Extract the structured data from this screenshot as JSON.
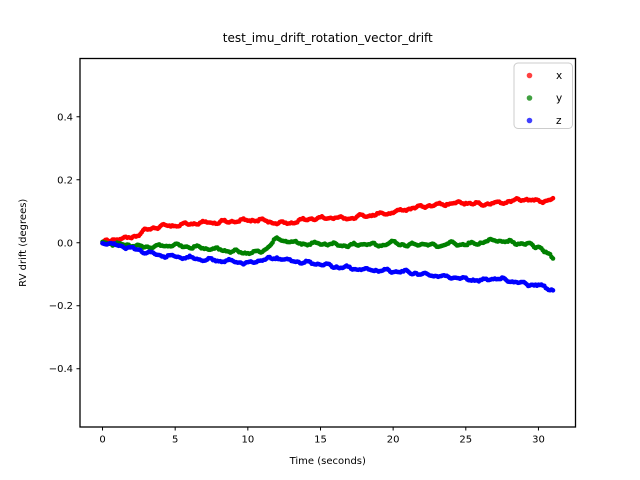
{
  "figure": {
    "background": "#ffffff",
    "axes_edge_color": "#000000"
  },
  "chart_data": {
    "type": "scatter",
    "title": "test_imu_drift_rotation_vector_drift",
    "xlabel": "Time (seconds)",
    "ylabel": "RV drift (degrees)",
    "xlim": [
      -1.55,
      32.55
    ],
    "ylim": [
      -0.585,
      0.585
    ],
    "grid": false,
    "marker": "point",
    "xticks": {
      "values": [
        0,
        5,
        10,
        15,
        20,
        25,
        30
      ],
      "labels": [
        "0",
        "5",
        "10",
        "15",
        "20",
        "25",
        "30"
      ]
    },
    "yticks": {
      "values": [
        -0.4,
        -0.2,
        0.0,
        0.2,
        0.4
      ],
      "labels": [
        "−0.4",
        "−0.2",
        "0.0",
        "0.2",
        "0.4"
      ]
    },
    "legend": {
      "position": "upper right",
      "entries": [
        {
          "label": "x",
          "color": "#ff0000"
        },
        {
          "label": "y",
          "color": "#008000"
        },
        {
          "label": "z",
          "color": "#0000ff"
        }
      ]
    },
    "sample_interval_seconds": 1,
    "x": [
      0,
      1,
      2,
      3,
      4,
      5,
      6,
      7,
      8,
      9,
      10,
      11,
      12,
      13,
      14,
      15,
      16,
      17,
      18,
      19,
      20,
      21,
      22,
      23,
      24,
      25,
      26,
      27,
      28,
      29,
      30,
      31
    ],
    "series": [
      {
        "name": "x",
        "color": "#ff0000",
        "values": [
          0.0,
          0.013,
          0.015,
          0.04,
          0.053,
          0.055,
          0.06,
          0.063,
          0.065,
          0.068,
          0.071,
          0.072,
          0.062,
          0.063,
          0.075,
          0.078,
          0.08,
          0.077,
          0.086,
          0.09,
          0.096,
          0.108,
          0.115,
          0.12,
          0.124,
          0.127,
          0.122,
          0.125,
          0.131,
          0.139,
          0.131,
          0.138
        ]
      },
      {
        "name": "y",
        "color": "#008000",
        "values": [
          0.0,
          -0.004,
          -0.008,
          -0.014,
          -0.01,
          -0.008,
          -0.013,
          -0.017,
          -0.022,
          -0.028,
          -0.032,
          -0.028,
          0.012,
          0.002,
          -0.004,
          -0.002,
          -0.006,
          -0.009,
          -0.004,
          -0.008,
          0.001,
          -0.008,
          -0.004,
          -0.01,
          -0.002,
          -0.006,
          0.0,
          0.008,
          0.002,
          -0.004,
          -0.012,
          -0.05
        ]
      },
      {
        "name": "z",
        "color": "#0000ff",
        "values": [
          0.0,
          -0.008,
          -0.018,
          -0.03,
          -0.04,
          -0.044,
          -0.048,
          -0.053,
          -0.057,
          -0.06,
          -0.065,
          -0.054,
          -0.048,
          -0.058,
          -0.063,
          -0.068,
          -0.076,
          -0.08,
          -0.085,
          -0.088,
          -0.09,
          -0.093,
          -0.1,
          -0.105,
          -0.11,
          -0.115,
          -0.12,
          -0.113,
          -0.12,
          -0.13,
          -0.135,
          -0.15
        ]
      }
    ]
  }
}
